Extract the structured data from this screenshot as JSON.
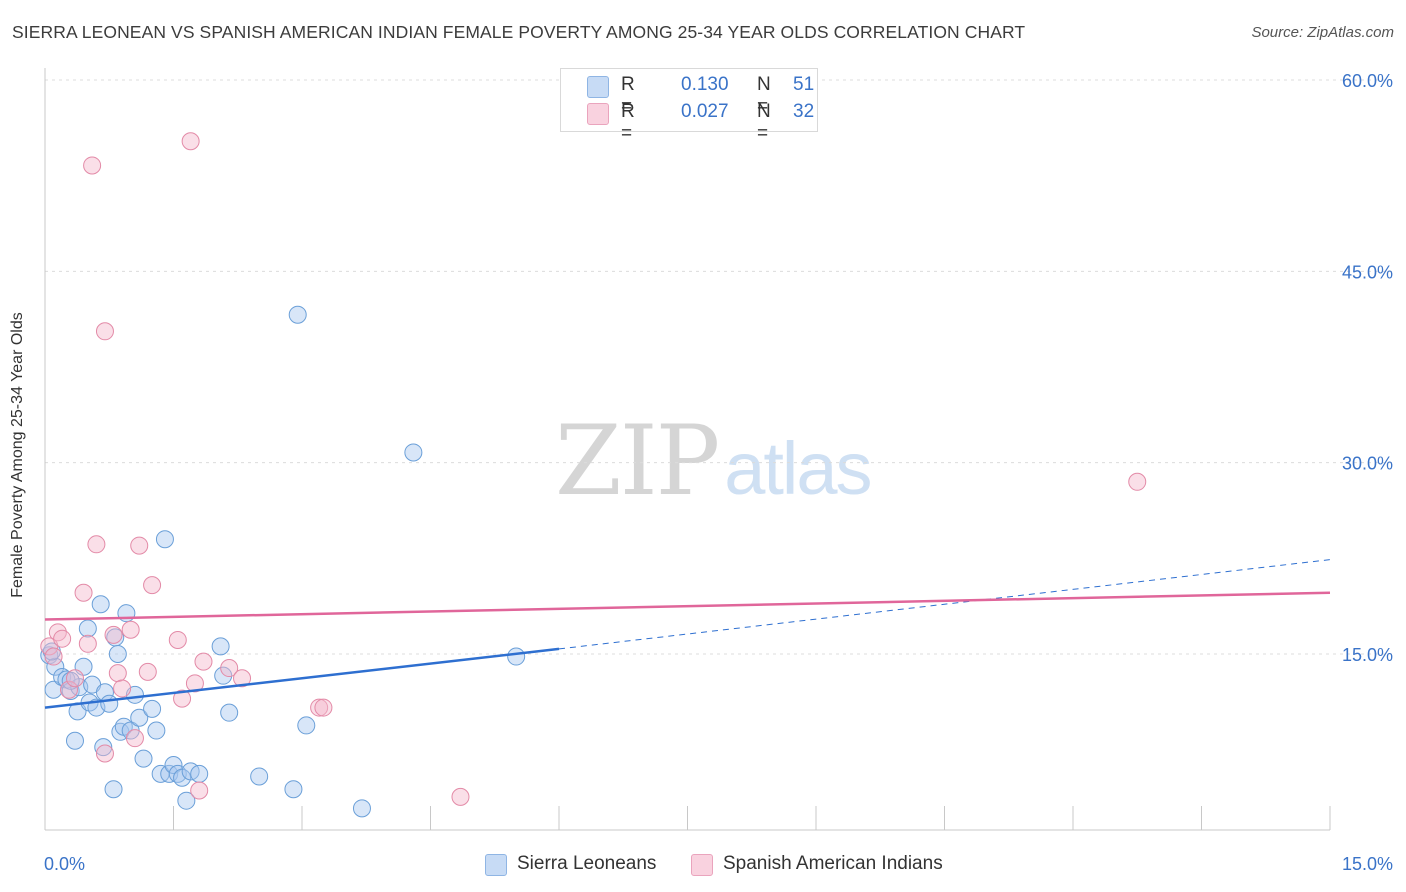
{
  "title": "SIERRA LEONEAN VS SPANISH AMERICAN INDIAN FEMALE POVERTY AMONG 25-34 YEAR OLDS CORRELATION CHART",
  "source": "Source: ZipAtlas.com",
  "watermark": {
    "zip": "ZIP",
    "atlas": "atlas"
  },
  "legend_top": [
    {
      "r_label": "R =",
      "r_value": "0.130",
      "n_label": "N =",
      "n_value": "51",
      "color": "#a9c8ef"
    },
    {
      "r_label": "R =",
      "r_value": "0.027",
      "n_label": "N =",
      "n_value": "32",
      "color": "#f5b8cc"
    }
  ],
  "legend_bottom": [
    {
      "label": "Sierra Leoneans",
      "color": "#a9c8ef"
    },
    {
      "label": "Spanish American Indians",
      "color": "#f5b8cc"
    }
  ],
  "chart_data": {
    "type": "scatter",
    "title": "SIERRA LEONEAN VS SPANISH AMERICAN INDIAN FEMALE POVERTY AMONG 25-34 YEAR OLDS CORRELATION CHART",
    "xlabel": "",
    "ylabel": "Female Poverty Among 25-34 Year Olds",
    "xlim": [
      0,
      15
    ],
    "ylim": [
      0,
      62
    ],
    "x_tick_labels": [
      "0.0%",
      "15.0%"
    ],
    "y_ticks": [
      15,
      30,
      45,
      60
    ],
    "y_tick_labels": [
      "15.0%",
      "30.0%",
      "45.0%",
      "60.0%"
    ],
    "grid": true,
    "series": [
      {
        "name": "Sierra Leoneans",
        "color": "#a9c8ef",
        "stroke": "#6a9fd8",
        "trend": {
          "x0": 0,
          "y0": 10.8,
          "x1": 6.0,
          "y1": 15.4,
          "dash_x1": 15.0,
          "dash_y1": 22.4,
          "color": "#2e6fd0"
        },
        "points": [
          [
            0.05,
            14.9
          ],
          [
            0.1,
            12.2
          ],
          [
            0.12,
            14.0
          ],
          [
            0.2,
            13.2
          ],
          [
            0.25,
            13.0
          ],
          [
            0.3,
            12.1
          ],
          [
            0.35,
            8.2
          ],
          [
            0.38,
            10.5
          ],
          [
            0.4,
            12.4
          ],
          [
            0.45,
            14.0
          ],
          [
            0.5,
            17.0
          ],
          [
            0.52,
            11.2
          ],
          [
            0.55,
            12.6
          ],
          [
            0.6,
            10.8
          ],
          [
            0.65,
            18.9
          ],
          [
            0.68,
            7.7
          ],
          [
            0.7,
            12.0
          ],
          [
            0.75,
            11.1
          ],
          [
            0.8,
            4.4
          ],
          [
            0.82,
            16.3
          ],
          [
            0.85,
            15.0
          ],
          [
            0.88,
            8.9
          ],
          [
            0.92,
            9.3
          ],
          [
            0.95,
            18.2
          ],
          [
            1.0,
            9.0
          ],
          [
            1.05,
            11.8
          ],
          [
            1.1,
            10.0
          ],
          [
            1.15,
            6.8
          ],
          [
            1.25,
            10.7
          ],
          [
            1.3,
            9.0
          ],
          [
            1.35,
            5.6
          ],
          [
            1.4,
            24.0
          ],
          [
            1.45,
            5.6
          ],
          [
            1.5,
            6.3
          ],
          [
            1.55,
            5.6
          ],
          [
            1.6,
            5.3
          ],
          [
            1.65,
            3.5
          ],
          [
            1.7,
            5.8
          ],
          [
            1.8,
            5.6
          ],
          [
            2.05,
            15.6
          ],
          [
            2.08,
            13.3
          ],
          [
            2.15,
            10.4
          ],
          [
            2.5,
            5.4
          ],
          [
            2.9,
            4.4
          ],
          [
            2.95,
            41.6
          ],
          [
            3.05,
            9.4
          ],
          [
            3.7,
            2.9
          ],
          [
            4.3,
            30.8
          ],
          [
            5.5,
            14.8
          ],
          [
            0.08,
            15.2
          ],
          [
            0.3,
            12.9
          ]
        ]
      },
      {
        "name": "Spanish American Indians",
        "color": "#f5b8cc",
        "stroke": "#e38aa7",
        "trend": {
          "x0": 0,
          "y0": 17.7,
          "x1": 15.0,
          "y1": 19.8,
          "color": "#e0669a"
        },
        "points": [
          [
            0.05,
            15.6
          ],
          [
            0.1,
            14.8
          ],
          [
            0.15,
            16.7
          ],
          [
            0.2,
            16.2
          ],
          [
            0.28,
            12.2
          ],
          [
            0.35,
            13.1
          ],
          [
            0.45,
            19.8
          ],
          [
            0.5,
            15.8
          ],
          [
            0.55,
            53.3
          ],
          [
            0.6,
            23.6
          ],
          [
            0.7,
            7.2
          ],
          [
            0.7,
            40.3
          ],
          [
            0.8,
            16.5
          ],
          [
            0.85,
            13.5
          ],
          [
            0.9,
            12.3
          ],
          [
            1.0,
            16.9
          ],
          [
            1.05,
            8.4
          ],
          [
            1.1,
            23.5
          ],
          [
            1.2,
            13.6
          ],
          [
            1.25,
            20.4
          ],
          [
            1.55,
            16.1
          ],
          [
            1.6,
            11.5
          ],
          [
            1.7,
            55.2
          ],
          [
            1.75,
            12.7
          ],
          [
            1.8,
            4.3
          ],
          [
            1.85,
            14.4
          ],
          [
            2.15,
            13.9
          ],
          [
            2.3,
            13.1
          ],
          [
            3.2,
            10.8
          ],
          [
            3.25,
            10.8
          ],
          [
            4.85,
            3.8
          ],
          [
            12.75,
            28.5
          ]
        ]
      }
    ]
  }
}
